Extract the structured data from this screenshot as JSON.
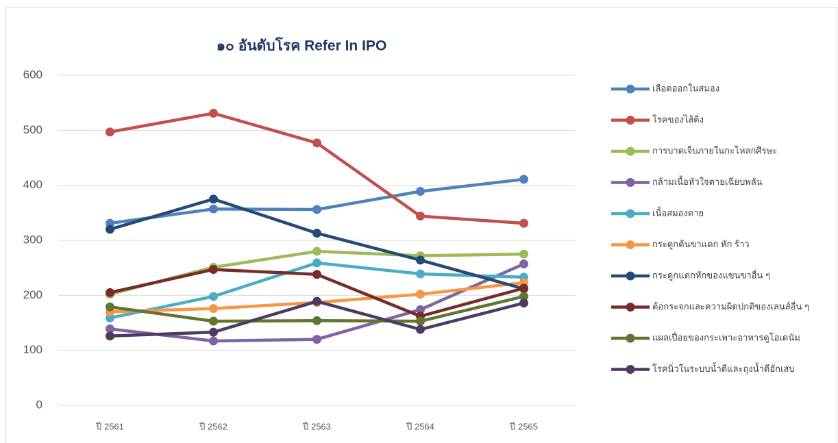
{
  "chart_data": {
    "type": "line",
    "title": "๑๐ อันดับโรค Refer In IPO",
    "categories": [
      "ปี 2561",
      "ปี 2562",
      "ปี 2563",
      "ปี 2564",
      "ปี 2565"
    ],
    "series": [
      {
        "name": "เลือดออกในสมอง",
        "color": "#4f81bd",
        "values": [
          331,
          357,
          356,
          389,
          411
        ]
      },
      {
        "name": "โรคของไส้ติ่ง",
        "color": "#c0504d",
        "values": [
          497,
          531,
          477,
          344,
          331
        ]
      },
      {
        "name": "การบาดเจ็บภายในกะโหลกศีรษะ",
        "color": "#9bbb59",
        "values": [
          202,
          251,
          280,
          272,
          275
        ]
      },
      {
        "name": "กล้ามเนื้อหัวใจตายเฉียบพลัน",
        "color": "#8064a2",
        "values": [
          139,
          117,
          120,
          174,
          257
        ]
      },
      {
        "name": "เนื้อสมองตาย",
        "color": "#4bacc6",
        "values": [
          159,
          198,
          259,
          239,
          233
        ]
      },
      {
        "name": "กระดูกต้นขาแตก หัก ร้าว",
        "color": "#f79646",
        "values": [
          170,
          176,
          187,
          202,
          223
        ]
      },
      {
        "name": "กระดูกแตกหักของแขนขาอื่น ๆ",
        "color": "#254a75",
        "values": [
          320,
          375,
          313,
          264,
          212
        ]
      },
      {
        "name": "ต้อกระจกและความผิดปกติของเลนส์อื่น ๆ",
        "color": "#772c2a",
        "values": [
          205,
          247,
          238,
          162,
          213
        ]
      },
      {
        "name": "แผลเปื่อยของกระเพาะอาหารดูโอเดนัม",
        "color": "#5f7530",
        "values": [
          179,
          153,
          154,
          153,
          198
        ]
      },
      {
        "name": "โรคนิ่วในระบบน้ำดีและถุงน้ำดีอักเสบ",
        "color": "#4d3b62",
        "values": [
          126,
          133,
          189,
          138,
          186
        ]
      }
    ],
    "ylim": [
      0,
      600
    ],
    "yticks": [
      0,
      100,
      200,
      300,
      400,
      500,
      600
    ],
    "grid": true,
    "legend": "right"
  }
}
